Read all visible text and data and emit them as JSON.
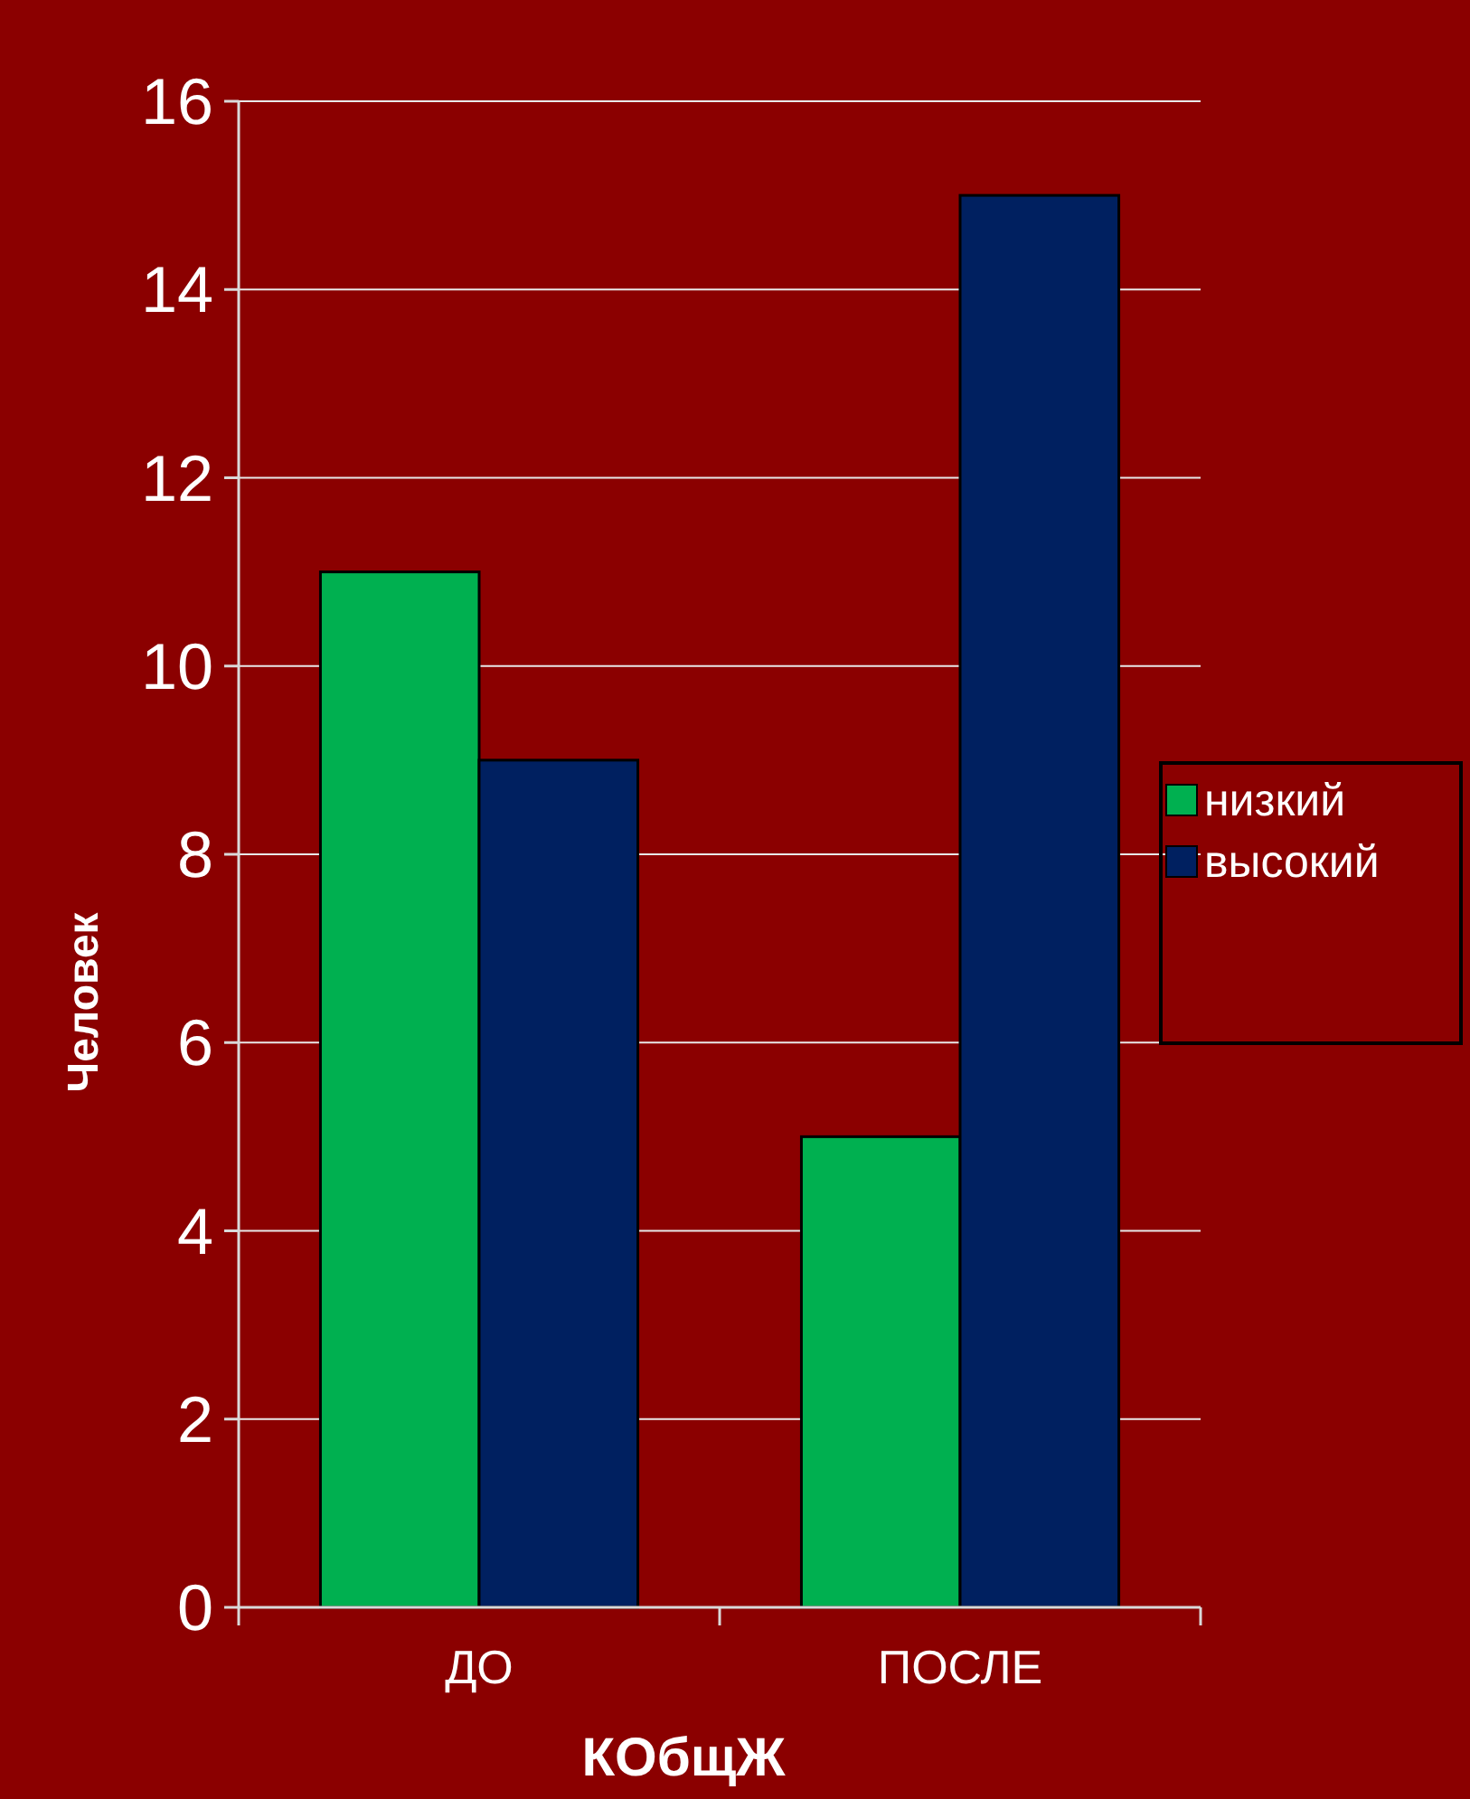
{
  "chart_data": {
    "type": "bar",
    "xlabel": "КОбщЖ",
    "ylabel": "Человек",
    "categories": [
      "ДО",
      "ПОСЛЕ"
    ],
    "series": [
      {
        "name": "низкий",
        "color": "#00b050",
        "values": [
          11,
          5
        ]
      },
      {
        "name": "высокий",
        "color": "#002060",
        "values": [
          9,
          15
        ]
      }
    ],
    "ylim": [
      0,
      16
    ],
    "yticks": [
      0,
      2,
      4,
      6,
      8,
      10,
      12,
      14,
      16
    ],
    "grid": "y",
    "legend": "right"
  }
}
